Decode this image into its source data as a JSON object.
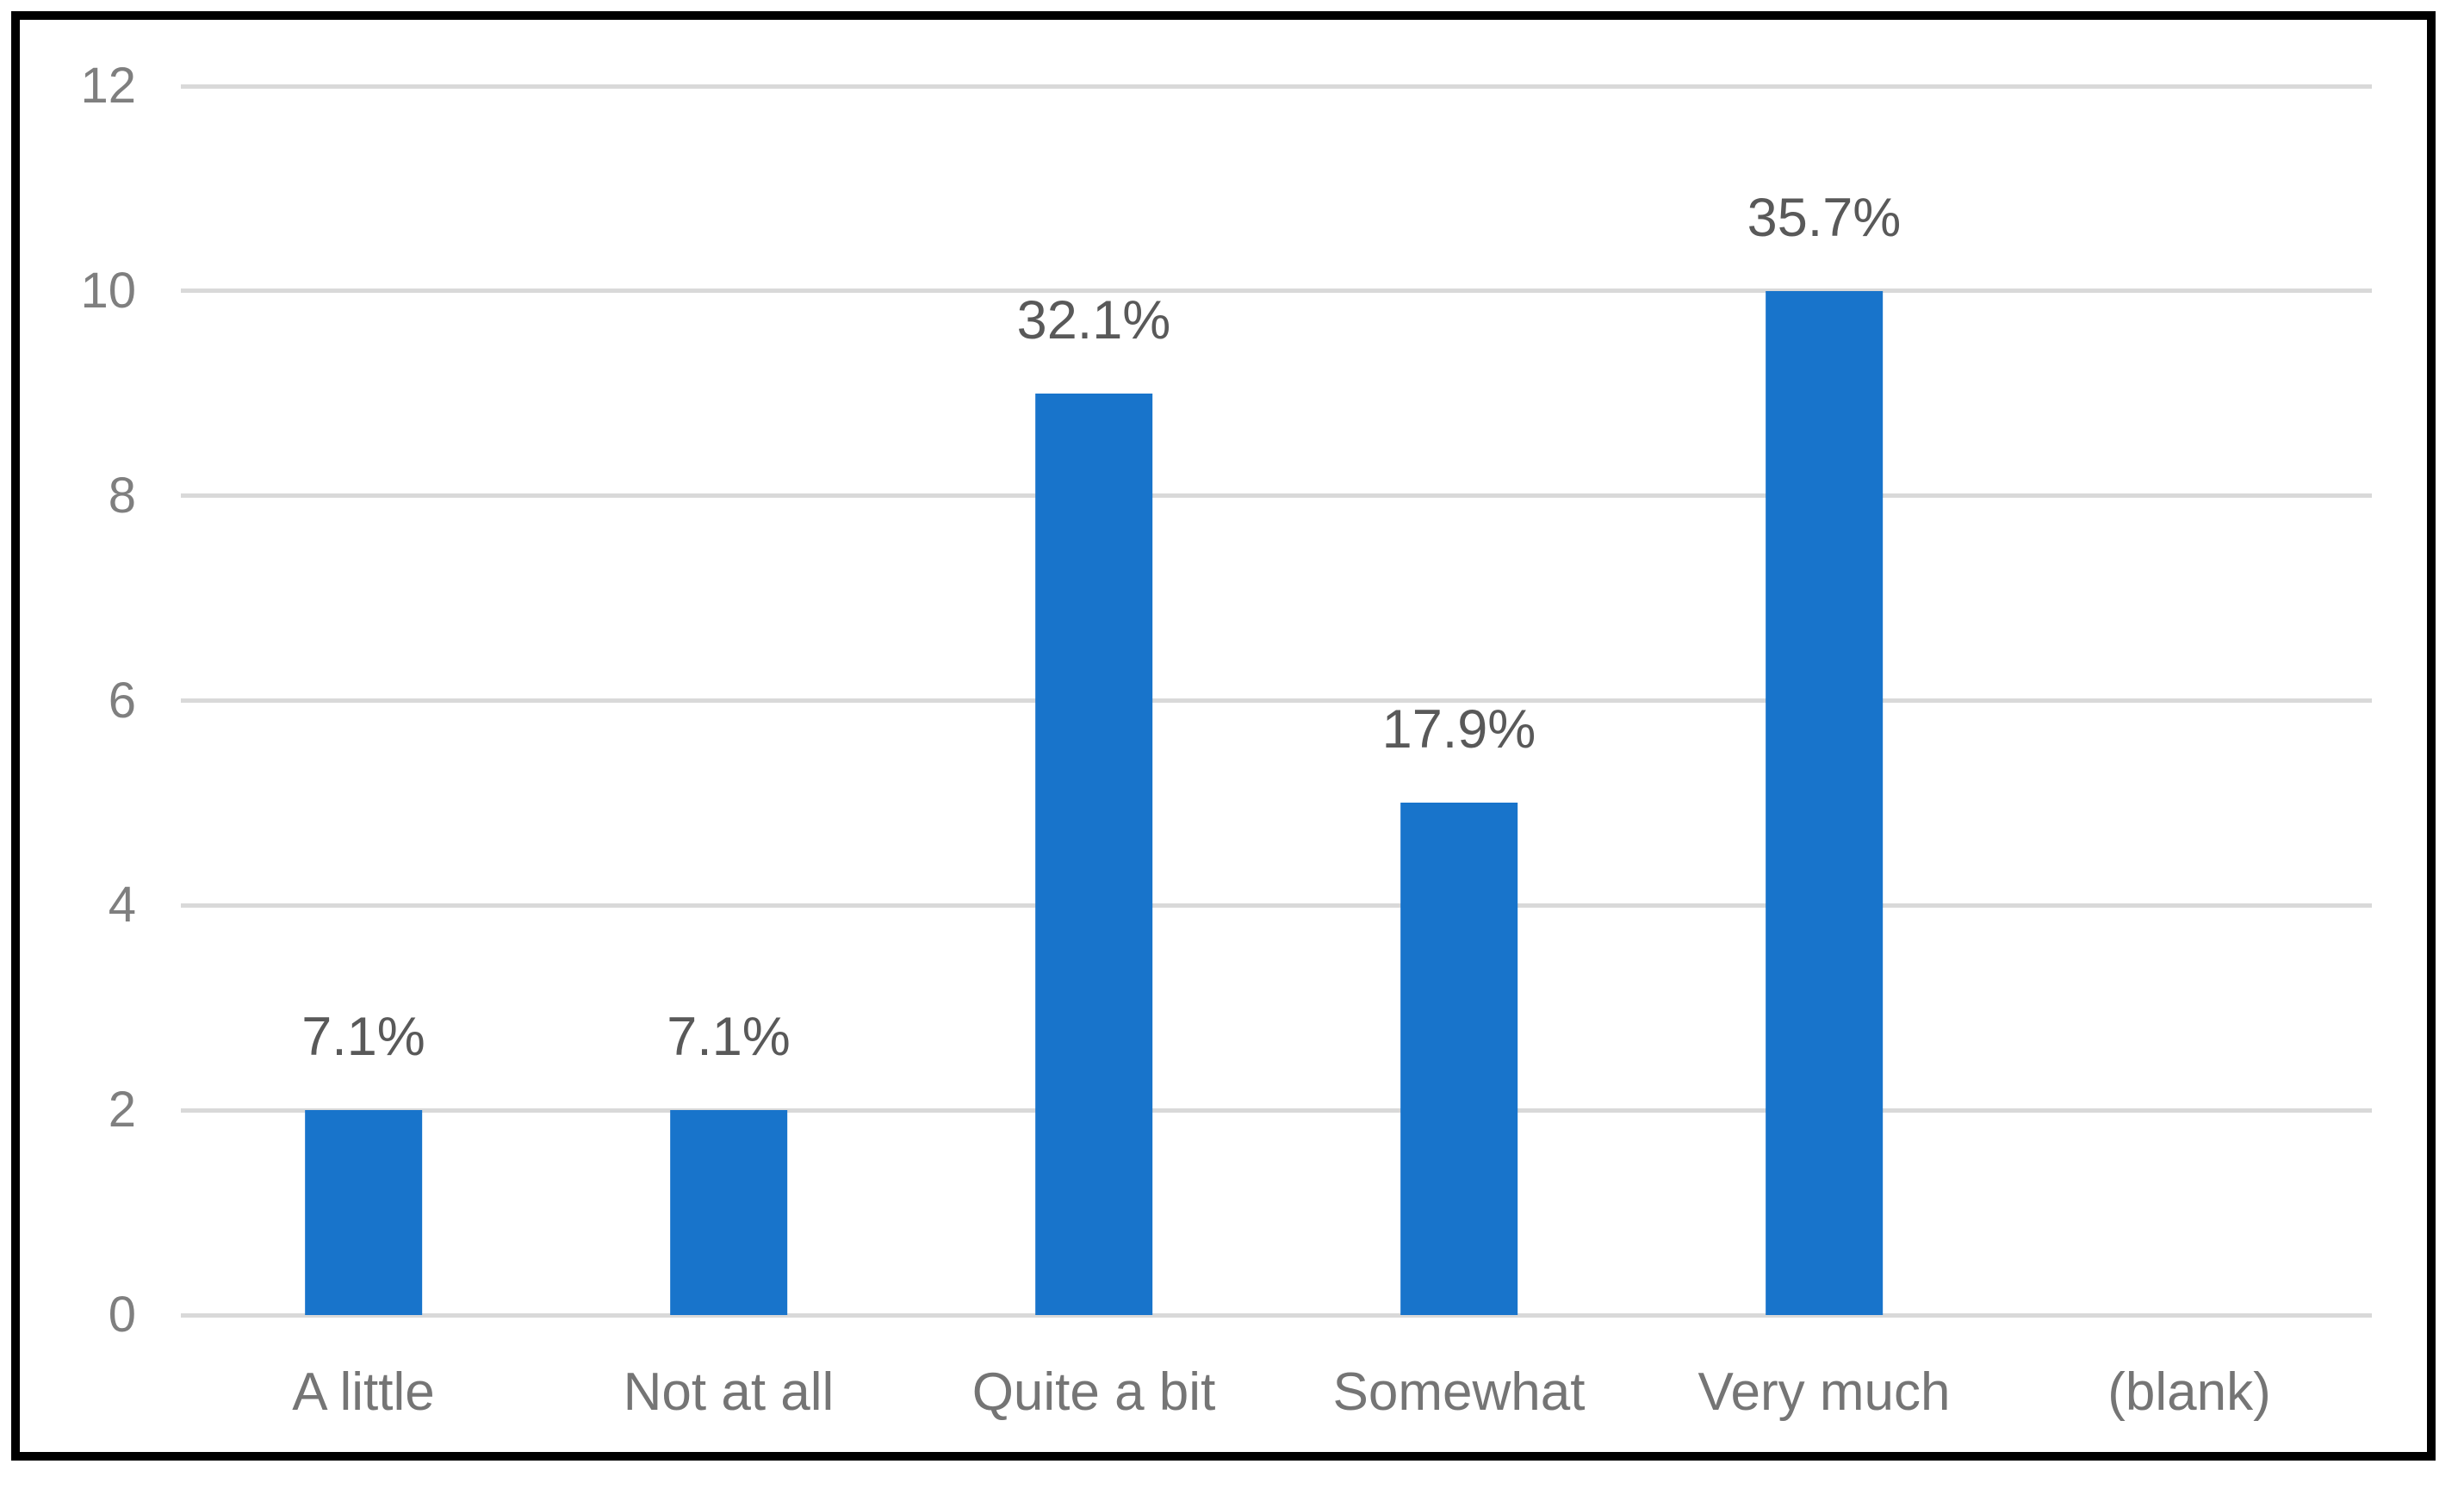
{
  "chart_data": {
    "type": "bar",
    "title": "",
    "xlabel": "",
    "ylabel": "",
    "categories": [
      "A little",
      "Not at all",
      "Quite a bit",
      "Somewhat",
      "Very much",
      "(blank)"
    ],
    "values": [
      2,
      2,
      9,
      5,
      10,
      0
    ],
    "data_labels": [
      "7.1%",
      "7.1%",
      "32.1%",
      "17.9%",
      "35.7%",
      ""
    ],
    "ylim": [
      0,
      12
    ],
    "yticks": [
      0,
      2,
      4,
      6,
      8,
      10,
      12
    ],
    "grid": "horizontal",
    "legend": "none",
    "colors": {
      "bar_fill": "#1874CB",
      "gridline": "#D9D9D9",
      "y_tick_label": "#7F7F7F",
      "x_category_label": "#757575",
      "data_label": "#595959",
      "frame_border": "#000000",
      "background": "#FFFFFF"
    }
  }
}
